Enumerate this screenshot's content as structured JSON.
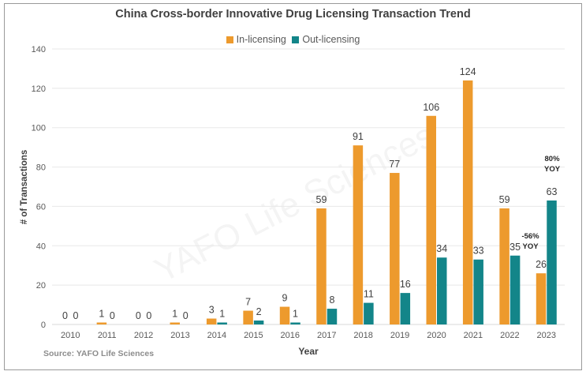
{
  "chart_data": {
    "type": "bar",
    "title": "China Cross-border Innovative Drug Licensing Transaction Trend",
    "xlabel": "Year",
    "ylabel": "# of Transactions",
    "ylim": [
      0,
      140
    ],
    "yticks": [
      0,
      20,
      40,
      60,
      80,
      100,
      120,
      140
    ],
    "grid": true,
    "legend_position": "top-center",
    "categories": [
      "2010",
      "2011",
      "2012",
      "2013",
      "2014",
      "2015",
      "2016",
      "2017",
      "2018",
      "2019",
      "2020",
      "2021",
      "2022",
      "2023"
    ],
    "series": [
      {
        "name": "In-licensing",
        "color": "#ED9A2D",
        "values": [
          0,
          1,
          0,
          1,
          3,
          7,
          9,
          59,
          91,
          77,
          106,
          124,
          59,
          26
        ]
      },
      {
        "name": "Out-licensing",
        "color": "#138589",
        "values": [
          0,
          0,
          0,
          0,
          1,
          2,
          1,
          8,
          11,
          16,
          34,
          33,
          35,
          63
        ]
      }
    ],
    "annotations": [
      {
        "category": "2023",
        "series": "In-licensing",
        "line1": "-56%",
        "line2": "YOY"
      },
      {
        "category": "2023",
        "series": "Out-licensing",
        "line1": "80%",
        "line2": "YOY"
      }
    ],
    "watermark": "YAFO Life Sciences",
    "source": "Source: YAFO Life Sciences"
  }
}
